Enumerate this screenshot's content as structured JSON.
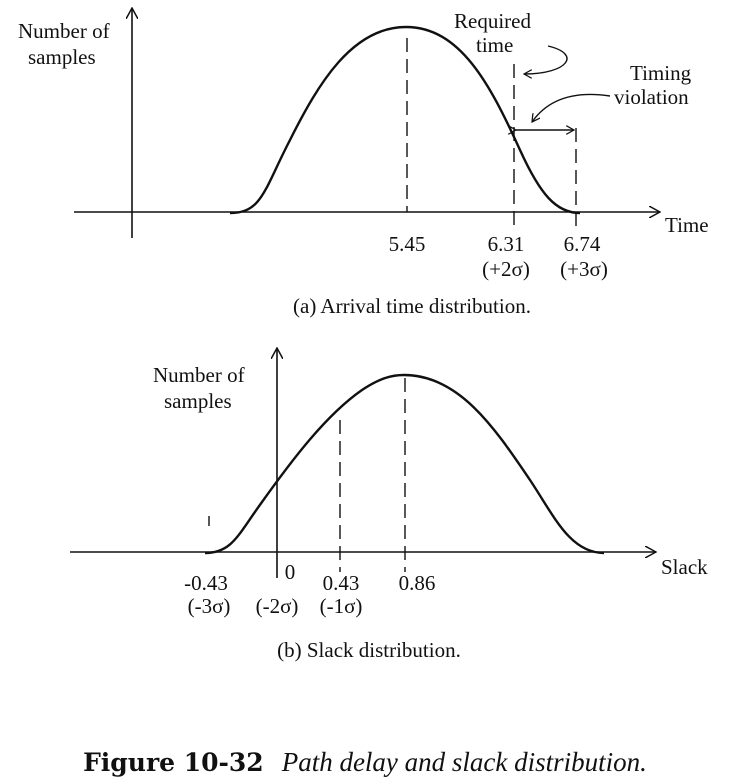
{
  "figure": {
    "number": "Figure 10-32",
    "title": "Path delay and slack distribution."
  },
  "panel_a": {
    "ylabel_line1": "Number of",
    "ylabel_line2": "samples",
    "xlabel": "Time",
    "caption": "(a) Arrival time distribution.",
    "ticks": [
      {
        "value": "5.45",
        "sigma": ""
      },
      {
        "value": "6.31",
        "sigma": "(+2σ)"
      },
      {
        "value": "6.74",
        "sigma": "(+3σ)"
      }
    ],
    "required_time_line1": "Required",
    "required_time_line2": "time",
    "timing_violation_line1": "Timing",
    "timing_violation_line2": "violation"
  },
  "panel_b": {
    "ylabel_line1": "Number of",
    "ylabel_line2": "samples",
    "xlabel": "Slack",
    "caption": "(b) Slack distribution.",
    "ticks": [
      {
        "value": "-0.43",
        "sigma": "(-3σ)"
      },
      {
        "value": "0",
        "sigma": "(-2σ)"
      },
      {
        "value": "0.43",
        "sigma": "(-1σ)"
      },
      {
        "value": "0.86",
        "sigma": ""
      }
    ]
  }
}
